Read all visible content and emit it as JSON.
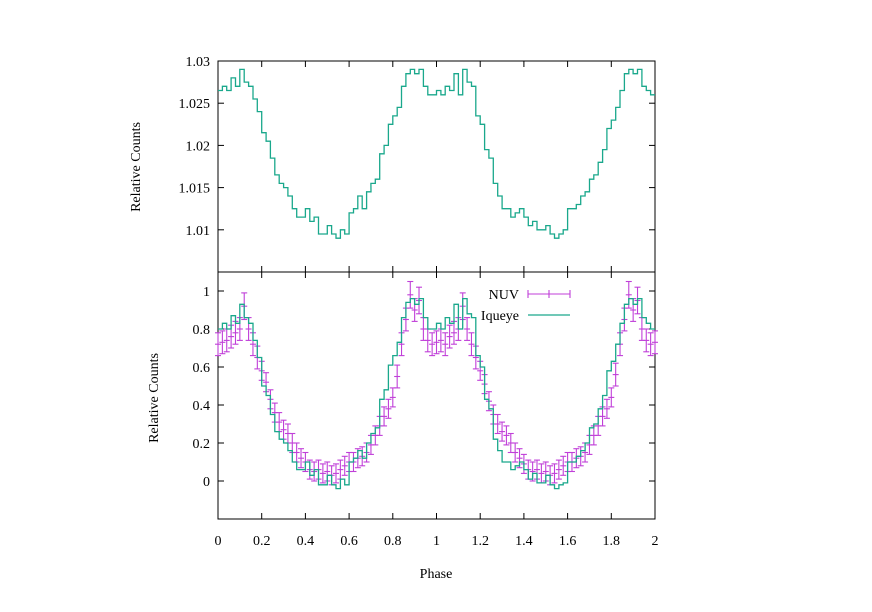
{
  "chart_data": [
    {
      "type": "line",
      "panel": "top",
      "xlabel": "",
      "ylabel": "Relative Counts",
      "xlim": [
        0,
        2
      ],
      "ylim": [
        1.005,
        1.03
      ],
      "yticks": [
        1.01,
        1.015,
        1.02,
        1.025,
        1.03
      ],
      "ytick_labels": [
        "1.01",
        "1.015",
        "1.02",
        "1.025",
        "1.03"
      ],
      "legend": "none",
      "series": [
        {
          "name": "Iqueye",
          "color": "#1aa88c",
          "style": "step",
          "x": [
            0,
            0.02,
            0.04,
            0.06,
            0.08,
            0.1,
            0.12,
            0.14,
            0.16,
            0.18,
            0.2,
            0.22,
            0.24,
            0.26,
            0.28,
            0.3,
            0.32,
            0.34,
            0.36,
            0.38,
            0.4,
            0.42,
            0.44,
            0.46,
            0.48,
            0.5,
            0.52,
            0.54,
            0.56,
            0.58,
            0.6,
            0.62,
            0.64,
            0.66,
            0.68,
            0.7,
            0.72,
            0.74,
            0.76,
            0.78,
            0.8,
            0.82,
            0.84,
            0.86,
            0.88,
            0.9,
            0.92,
            0.94,
            0.96,
            0.98,
            1,
            1.02,
            1.04,
            1.06,
            1.08,
            1.1,
            1.12,
            1.14,
            1.16,
            1.18,
            1.2,
            1.22,
            1.24,
            1.26,
            1.28,
            1.3,
            1.32,
            1.34,
            1.36,
            1.38,
            1.4,
            1.42,
            1.44,
            1.46,
            1.48,
            1.5,
            1.52,
            1.54,
            1.56,
            1.58,
            1.6,
            1.62,
            1.64,
            1.66,
            1.68,
            1.7,
            1.72,
            1.74,
            1.76,
            1.78,
            1.8,
            1.82,
            1.84,
            1.86,
            1.88,
            1.9,
            1.92,
            1.94,
            1.96,
            1.98
          ],
          "y": [
            1.0265,
            1.027,
            1.0265,
            1.028,
            1.027,
            1.029,
            1.0275,
            1.027,
            1.0255,
            1.024,
            1.0215,
            1.0205,
            1.0185,
            1.0165,
            1.0155,
            1.015,
            1.014,
            1.0125,
            1.0115,
            1.0115,
            1.0125,
            1.011,
            1.0115,
            1.0095,
            1.0095,
            1.0105,
            1.0095,
            1.009,
            1.01,
            1.0095,
            1.012,
            1.0125,
            1.014,
            1.0125,
            1.0145,
            1.0155,
            1.016,
            1.019,
            1.02,
            1.0225,
            1.0235,
            1.0245,
            1.027,
            1.0285,
            1.029,
            1.0285,
            1.029,
            1.027,
            1.026,
            1.026,
            1.0265,
            1.026,
            1.027,
            1.0265,
            1.0285,
            1.026,
            1.029,
            1.0275,
            1.027,
            1.0235,
            1.0225,
            1.0195,
            1.0185,
            1.0155,
            1.014,
            1.0125,
            1.0125,
            1.0115,
            1.012,
            1.0125,
            1.0115,
            1.0105,
            1.011,
            1.01,
            1.01,
            1.0105,
            1.0095,
            1.009,
            1.0095,
            1.01,
            1.0125,
            1.0125,
            1.013,
            1.014,
            1.0145,
            1.016,
            1.0165,
            1.018,
            1.0195,
            1.022,
            1.023,
            1.0245,
            1.0265,
            1.0285,
            1.029,
            1.0285,
            1.029,
            1.027,
            1.0265,
            1.026
          ]
        }
      ]
    },
    {
      "type": "line",
      "panel": "bottom",
      "xlabel": "Phase",
      "ylabel": "Relative Counts",
      "xlim": [
        0,
        2
      ],
      "ylim": [
        -0.2,
        1.1
      ],
      "xticks": [
        0,
        0.2,
        0.4,
        0.6,
        0.8,
        1,
        1.2,
        1.4,
        1.6,
        1.8,
        2
      ],
      "xtick_labels": [
        "0",
        "0.2",
        "0.4",
        "0.6",
        "0.8",
        "1",
        "1.2",
        "1.4",
        "1.6",
        "1.8",
        "2"
      ],
      "yticks": [
        0,
        0.2,
        0.4,
        0.6,
        0.8,
        1
      ],
      "ytick_labels": [
        "0",
        "0.2",
        "0.4",
        "0.6",
        "0.8",
        "1"
      ],
      "legend": "top-right",
      "series": [
        {
          "name": "NUV",
          "color": "#c03fd8",
          "style": "points-errorbars",
          "x": [
            0,
            0.02,
            0.04,
            0.06,
            0.08,
            0.1,
            0.12,
            0.14,
            0.16,
            0.18,
            0.2,
            0.22,
            0.24,
            0.26,
            0.28,
            0.3,
            0.32,
            0.34,
            0.36,
            0.38,
            0.4,
            0.42,
            0.44,
            0.46,
            0.48,
            0.5,
            0.52,
            0.54,
            0.56,
            0.58,
            0.6,
            0.62,
            0.64,
            0.66,
            0.68,
            0.7,
            0.72,
            0.74,
            0.76,
            0.78,
            0.8,
            0.82,
            0.84,
            0.86,
            0.88,
            0.9,
            0.92,
            0.94,
            0.96,
            0.98,
            1,
            1.02,
            1.04,
            1.06,
            1.08,
            1.1,
            1.12,
            1.14,
            1.16,
            1.18,
            1.2,
            1.22,
            1.24,
            1.26,
            1.28,
            1.3,
            1.32,
            1.34,
            1.36,
            1.38,
            1.4,
            1.42,
            1.44,
            1.46,
            1.48,
            1.5,
            1.52,
            1.54,
            1.56,
            1.58,
            1.6,
            1.62,
            1.64,
            1.66,
            1.68,
            1.7,
            1.72,
            1.74,
            1.76,
            1.78,
            1.8,
            1.82,
            1.84,
            1.86,
            1.88,
            1.9,
            1.92,
            1.94,
            1.96,
            1.98,
            2
          ],
          "y": [
            0.72,
            0.73,
            0.74,
            0.76,
            0.78,
            0.8,
            0.92,
            0.8,
            0.72,
            0.65,
            0.58,
            0.52,
            0.43,
            0.36,
            0.31,
            0.27,
            0.25,
            0.2,
            0.15,
            0.12,
            0.1,
            0.06,
            0.05,
            0.06,
            0.04,
            0.05,
            0.03,
            0.04,
            0.06,
            0.08,
            0.1,
            0.1,
            0.12,
            0.13,
            0.15,
            0.19,
            0.24,
            0.29,
            0.34,
            0.38,
            0.44,
            0.55,
            0.72,
            0.85,
            0.98,
            0.9,
            0.95,
            0.8,
            0.74,
            0.72,
            0.73,
            0.74,
            0.72,
            0.76,
            0.78,
            0.8,
            0.92,
            0.8,
            0.72,
            0.65,
            0.58,
            0.51,
            0.42,
            0.35,
            0.3,
            0.26,
            0.24,
            0.2,
            0.15,
            0.12,
            0.09,
            0.06,
            0.05,
            0.06,
            0.04,
            0.05,
            0.03,
            0.04,
            0.06,
            0.08,
            0.1,
            0.1,
            0.12,
            0.13,
            0.15,
            0.19,
            0.24,
            0.29,
            0.34,
            0.38,
            0.44,
            0.56,
            0.72,
            0.85,
            0.98,
            0.9,
            0.95,
            0.8,
            0.74,
            0.72,
            0.73
          ],
          "error": [
            0.06,
            0.06,
            0.06,
            0.06,
            0.06,
            0.06,
            0.07,
            0.06,
            0.06,
            0.06,
            0.05,
            0.05,
            0.05,
            0.05,
            0.05,
            0.05,
            0.05,
            0.05,
            0.05,
            0.05,
            0.05,
            0.05,
            0.05,
            0.05,
            0.05,
            0.05,
            0.05,
            0.05,
            0.05,
            0.05,
            0.05,
            0.05,
            0.05,
            0.05,
            0.05,
            0.05,
            0.05,
            0.05,
            0.05,
            0.05,
            0.05,
            0.06,
            0.06,
            0.06,
            0.07,
            0.06,
            0.07,
            0.06,
            0.06,
            0.06,
            0.06,
            0.06,
            0.06,
            0.06,
            0.06,
            0.06,
            0.07,
            0.06,
            0.06,
            0.06,
            0.05,
            0.05,
            0.05,
            0.05,
            0.05,
            0.05,
            0.05,
            0.05,
            0.05,
            0.05,
            0.05,
            0.05,
            0.05,
            0.05,
            0.05,
            0.05,
            0.05,
            0.05,
            0.05,
            0.05,
            0.05,
            0.05,
            0.05,
            0.05,
            0.05,
            0.05,
            0.05,
            0.05,
            0.05,
            0.05,
            0.05,
            0.06,
            0.06,
            0.06,
            0.07,
            0.06,
            0.07,
            0.06,
            0.06,
            0.06,
            0.06
          ]
        },
        {
          "name": "Iqueye",
          "color": "#1aa88c",
          "style": "step",
          "x": [
            0,
            0.02,
            0.04,
            0.06,
            0.08,
            0.1,
            0.12,
            0.14,
            0.16,
            0.18,
            0.2,
            0.22,
            0.24,
            0.26,
            0.28,
            0.3,
            0.32,
            0.34,
            0.36,
            0.38,
            0.4,
            0.42,
            0.44,
            0.46,
            0.48,
            0.5,
            0.52,
            0.54,
            0.56,
            0.58,
            0.6,
            0.62,
            0.64,
            0.66,
            0.68,
            0.7,
            0.72,
            0.74,
            0.76,
            0.78,
            0.8,
            0.82,
            0.84,
            0.86,
            0.88,
            0.9,
            0.92,
            0.94,
            0.96,
            0.98,
            1,
            1.02,
            1.04,
            1.06,
            1.08,
            1.1,
            1.12,
            1.14,
            1.16,
            1.18,
            1.2,
            1.22,
            1.24,
            1.26,
            1.28,
            1.3,
            1.32,
            1.34,
            1.36,
            1.38,
            1.4,
            1.42,
            1.44,
            1.46,
            1.48,
            1.5,
            1.52,
            1.54,
            1.56,
            1.58,
            1.6,
            1.62,
            1.64,
            1.66,
            1.68,
            1.7,
            1.72,
            1.74,
            1.76,
            1.78,
            1.8,
            1.82,
            1.84,
            1.86,
            1.88,
            1.9,
            1.92,
            1.94,
            1.96,
            1.98
          ],
          "y": [
            0.8,
            0.83,
            0.8,
            0.87,
            0.83,
            0.93,
            0.86,
            0.83,
            0.74,
            0.65,
            0.5,
            0.45,
            0.35,
            0.26,
            0.22,
            0.2,
            0.16,
            0.1,
            0.06,
            0.06,
            0.1,
            0.03,
            0.06,
            -0.02,
            -0.02,
            0.03,
            -0.02,
            -0.04,
            0.01,
            -0.02,
            0.1,
            0.12,
            0.16,
            0.12,
            0.2,
            0.25,
            0.28,
            0.43,
            0.48,
            0.61,
            0.66,
            0.73,
            0.86,
            0.94,
            0.96,
            0.93,
            0.96,
            0.86,
            0.8,
            0.8,
            0.83,
            0.8,
            0.86,
            0.83,
            0.93,
            0.8,
            0.96,
            0.88,
            0.86,
            0.66,
            0.6,
            0.43,
            0.38,
            0.22,
            0.16,
            0.1,
            0.1,
            0.06,
            0.08,
            0.1,
            0.06,
            0.01,
            0.04,
            -0.01,
            -0.01,
            0.03,
            -0.02,
            -0.04,
            -0.02,
            -0.01,
            0.1,
            0.1,
            0.13,
            0.16,
            0.2,
            0.28,
            0.3,
            0.38,
            0.45,
            0.58,
            0.63,
            0.72,
            0.83,
            0.93,
            0.96,
            0.93,
            0.96,
            0.86,
            0.83,
            0.8
          ]
        }
      ]
    }
  ]
}
